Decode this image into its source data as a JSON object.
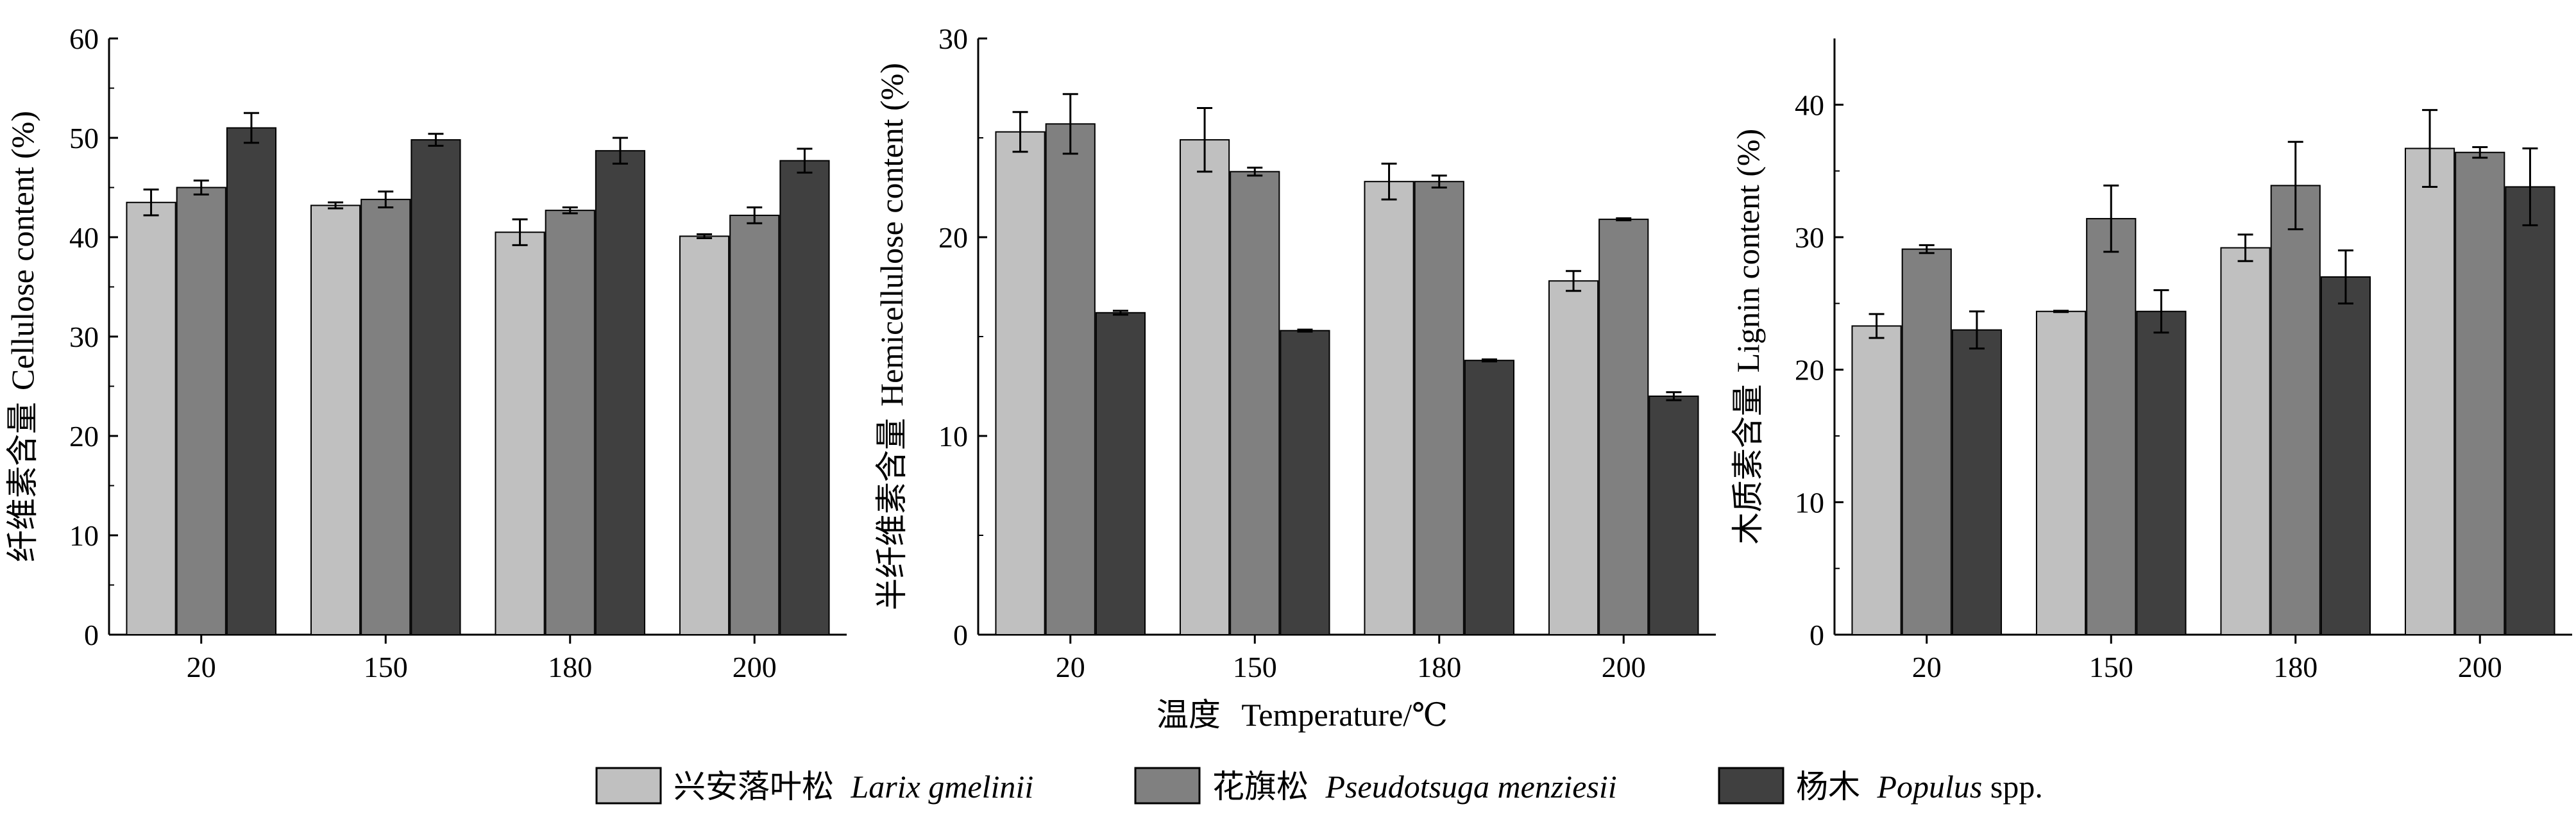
{
  "colors": {
    "larix": "#c0c0c0",
    "pseudotsuga": "#808080",
    "populus": "#404040"
  },
  "x_title": {
    "zh": "温度",
    "en": "Temperature/℃"
  },
  "legend": [
    {
      "zh": "兴安落叶松",
      "latin": "Larix gmelinii",
      "suffix": ""
    },
    {
      "zh": "花旗松",
      "latin": "Pseudotsuga menziesii",
      "suffix": ""
    },
    {
      "zh": "杨木",
      "latin": "Populus",
      "suffix": " spp."
    }
  ],
  "chart_data": [
    {
      "type": "bar",
      "categories": [
        "20",
        "150",
        "180",
        "200"
      ],
      "ylabel_zh": "纤维素含量",
      "ylabel_en": "Cellulose content (%)",
      "ylim": [
        0,
        60
      ],
      "yticks": [
        0,
        10,
        20,
        30,
        40,
        50,
        60
      ],
      "series": [
        {
          "values": [
            43.5,
            43.2,
            40.5,
            40.1
          ],
          "errors": [
            1.3,
            0.3,
            1.3,
            0.2
          ]
        },
        {
          "values": [
            45.0,
            43.8,
            42.7,
            42.2
          ],
          "errors": [
            0.7,
            0.8,
            0.3,
            0.8
          ]
        },
        {
          "values": [
            51.0,
            49.8,
            48.7,
            47.7
          ],
          "errors": [
            1.5,
            0.6,
            1.3,
            1.2
          ]
        }
      ]
    },
    {
      "type": "bar",
      "categories": [
        "20",
        "150",
        "180",
        "200"
      ],
      "ylabel_zh": "半纤维素含量",
      "ylabel_en": "Hemicellulose content (%)",
      "ylim": [
        0,
        30
      ],
      "yticks": [
        0,
        10,
        20,
        30
      ],
      "series": [
        {
          "values": [
            25.3,
            24.9,
            22.8,
            17.8
          ],
          "errors": [
            1.0,
            1.6,
            0.9,
            0.5
          ]
        },
        {
          "values": [
            25.7,
            23.3,
            22.8,
            20.9
          ],
          "errors": [
            1.5,
            0.2,
            0.3,
            0.05
          ]
        },
        {
          "values": [
            16.2,
            15.3,
            13.8,
            12.0
          ],
          "errors": [
            0.1,
            0.05,
            0.05,
            0.2
          ]
        }
      ]
    },
    {
      "type": "bar",
      "categories": [
        "20",
        "150",
        "180",
        "200"
      ],
      "ylabel_zh": "木质素含量",
      "ylabel_en": "Lignin content (%)",
      "ylim": [
        0,
        45
      ],
      "yticks": [
        0,
        10,
        20,
        30,
        40
      ],
      "series": [
        {
          "values": [
            23.3,
            24.4,
            29.2,
            36.7
          ],
          "errors": [
            0.9,
            0.05,
            1.0,
            2.9
          ]
        },
        {
          "values": [
            29.1,
            31.4,
            33.9,
            36.4
          ],
          "errors": [
            0.3,
            2.5,
            3.3,
            0.4
          ]
        },
        {
          "values": [
            23.0,
            24.4,
            27.0,
            33.8
          ],
          "errors": [
            1.4,
            1.6,
            2.0,
            2.9
          ]
        }
      ]
    }
  ]
}
